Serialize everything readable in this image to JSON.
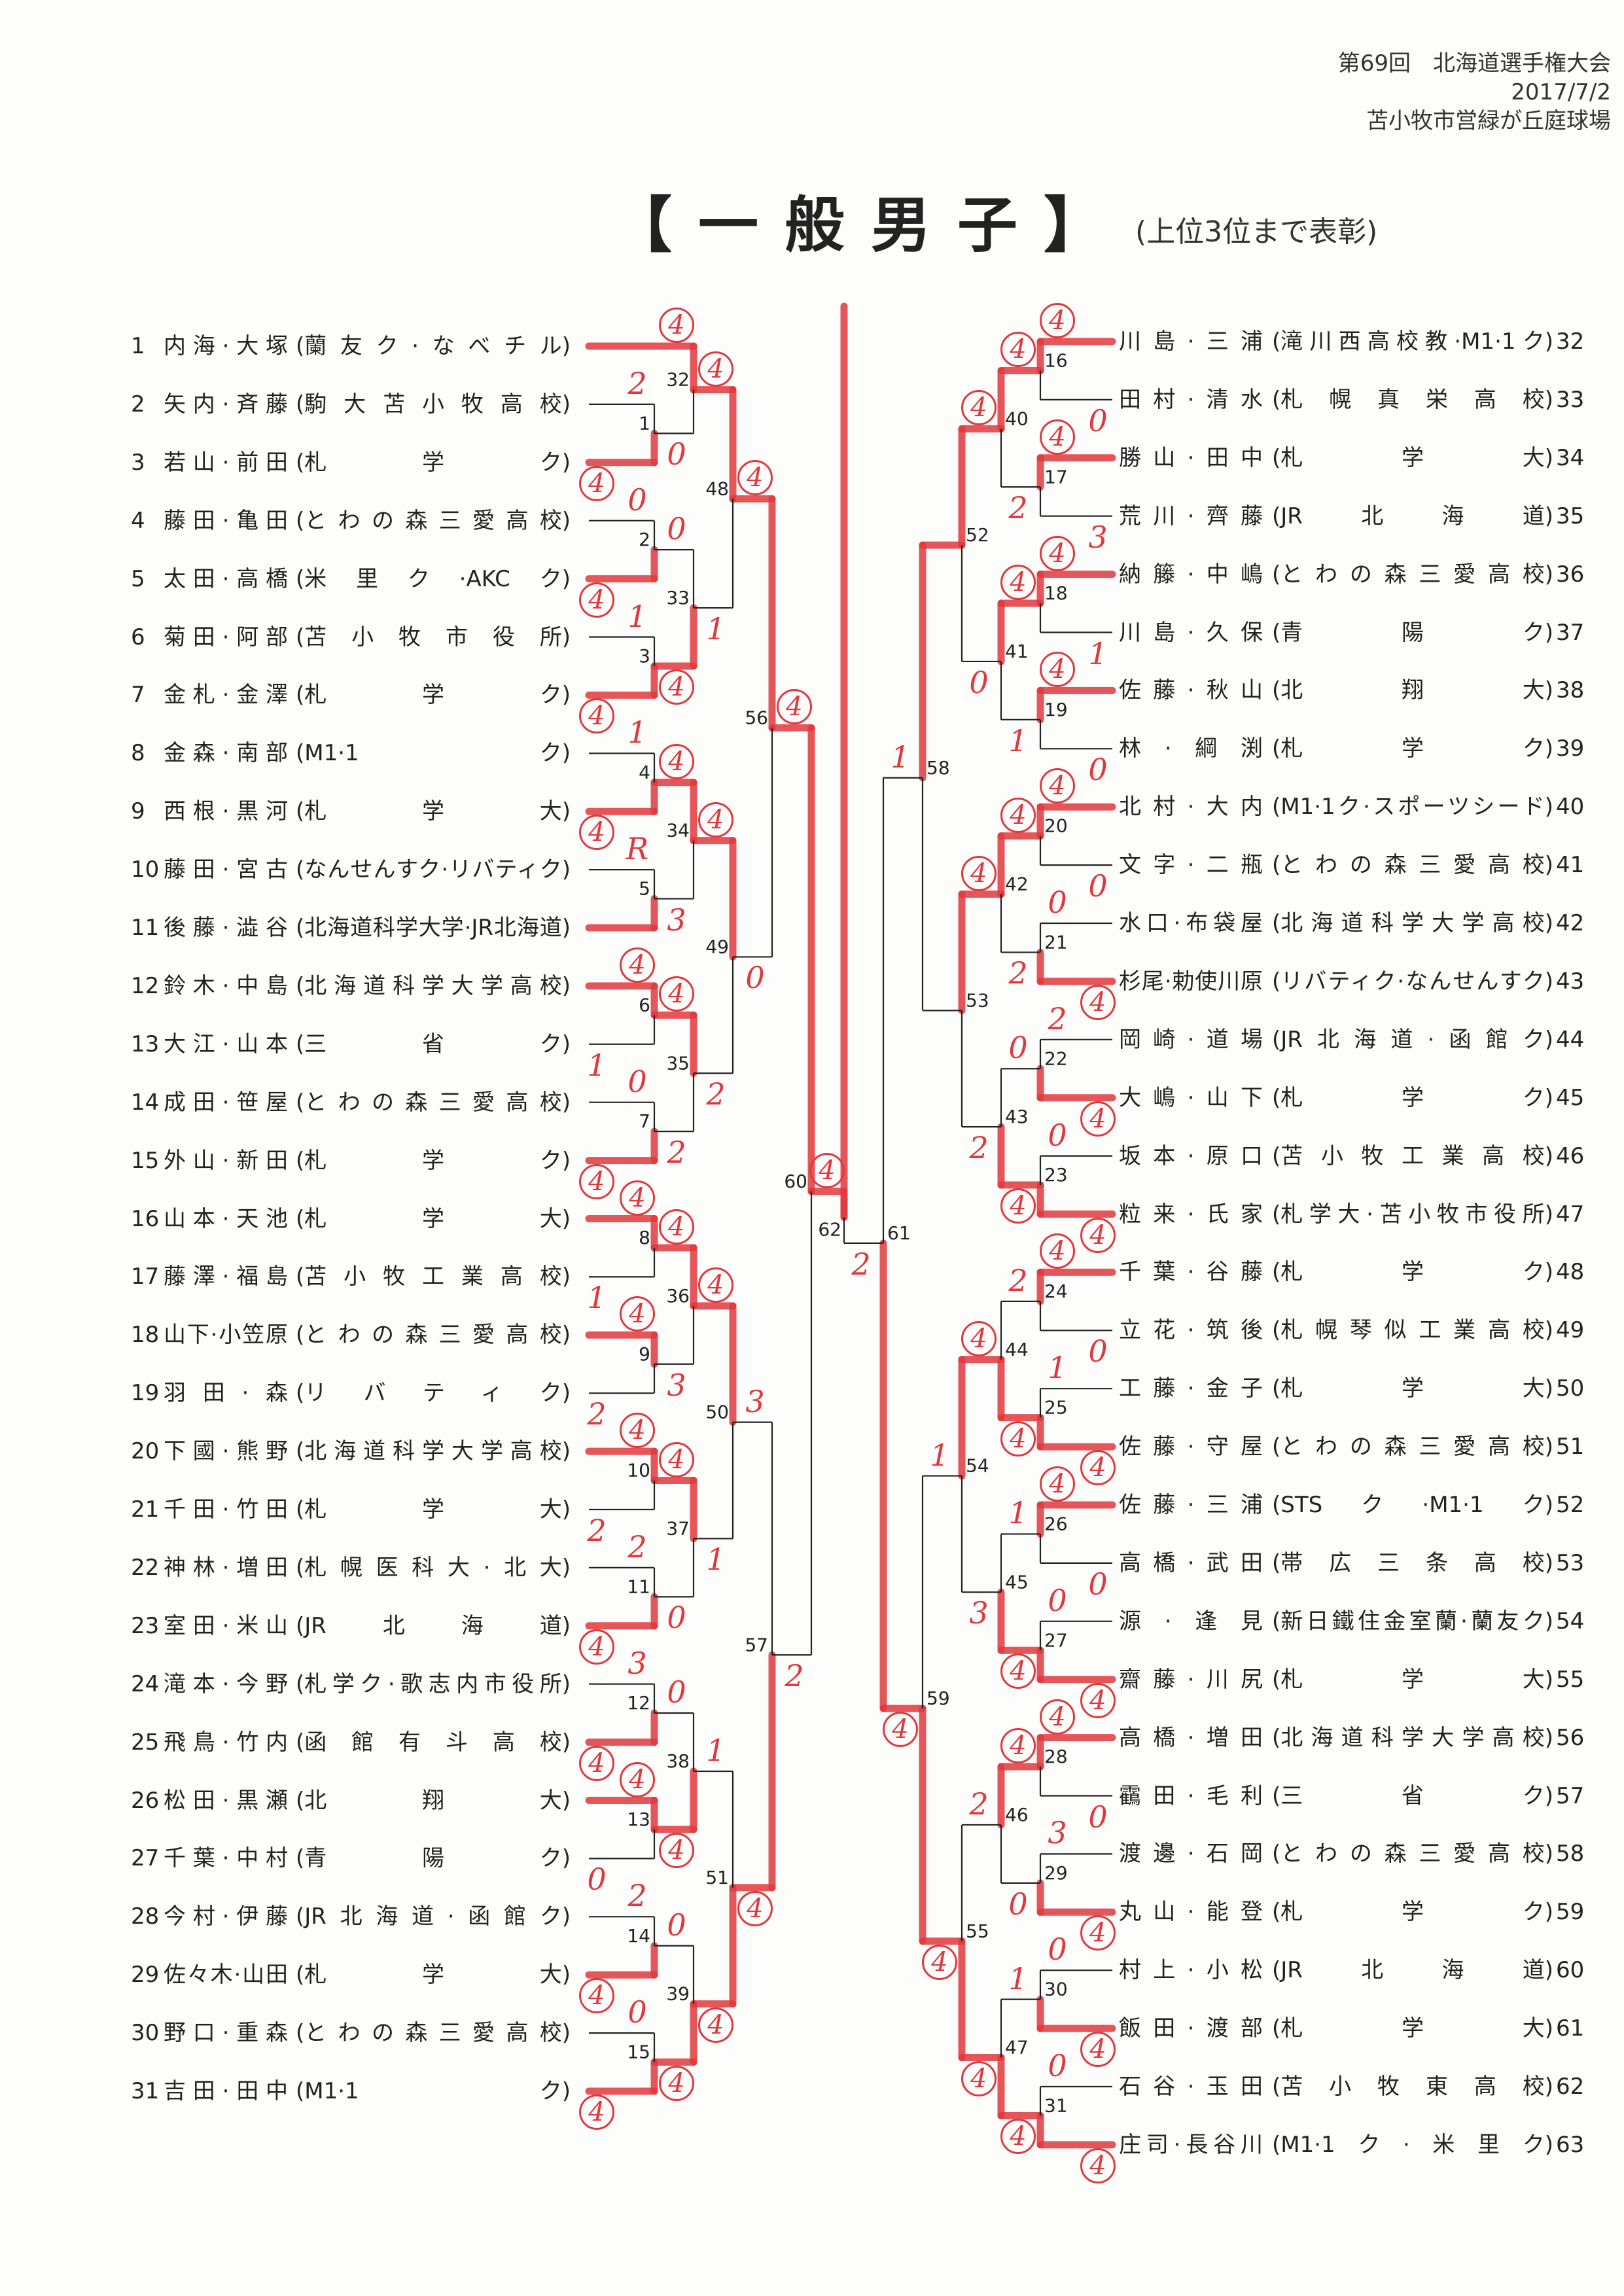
{
  "header": {
    "event": "第69回　北海道選手権大会",
    "date": "2017/7/2",
    "venue": "苫小牧市営緑が丘庭球場"
  },
  "title": "【一般男子】",
  "subtitle": "(上位3位まで表彰)",
  "colors": {
    "marker": "#e0383d",
    "line": "#222222"
  },
  "players": [
    {
      "no": "1",
      "name": "内海·大塚",
      "team": "蘭友ク·なべチル",
      "score": "4"
    },
    {
      "no": "2",
      "name": "矢内·斉藤",
      "team": "駒大苫小牧高校",
      "score": "2"
    },
    {
      "no": "3",
      "name": "若山·前田",
      "team": "札学ク",
      "score": "4"
    },
    {
      "no": "4",
      "name": "藤田·亀田",
      "team": "とわの森三愛高校",
      "score": "0"
    },
    {
      "no": "5",
      "name": "太田·高橋",
      "team": "米里ク·AKCク",
      "score": "4"
    },
    {
      "no": "6",
      "name": "菊田·阿部",
      "team": "苫小牧市役所",
      "score": "1"
    },
    {
      "no": "7",
      "name": "金札·金澤",
      "team": "札学ク",
      "score": "4"
    },
    {
      "no": "8",
      "name": "金森·南部",
      "team": "M1·1ク",
      "score": "1"
    },
    {
      "no": "9",
      "name": "西根·黒河",
      "team": "札学大",
      "score": "4"
    },
    {
      "no": "10",
      "name": "藤田·宮古",
      "team": "なんせんすク·リバティク",
      "score": "R"
    },
    {
      "no": "11",
      "name": "後藤·澁谷",
      "team": "北海道科学大学·JR北海道",
      "score": ""
    },
    {
      "no": "12",
      "name": "鈴木·中島",
      "team": "北海道科学大学高校",
      "score": "4"
    },
    {
      "no": "13",
      "name": "大江·山本",
      "team": "三省ク",
      "score": "1"
    },
    {
      "no": "14",
      "name": "成田·笹屋",
      "team": "とわの森三愛高校",
      "score": "0"
    },
    {
      "no": "15",
      "name": "外山·新田",
      "team": "札学ク",
      "score": "4"
    },
    {
      "no": "16",
      "name": "山本·天池",
      "team": "札学大",
      "score": "4"
    },
    {
      "no": "17",
      "name": "藤澤·福島",
      "team": "苫小牧工業高校",
      "score": "1"
    },
    {
      "no": "18",
      "name": "山下·小笠原",
      "team": "とわの森三愛高校",
      "score": "4"
    },
    {
      "no": "19",
      "name": "羽田·森",
      "team": "リバティク",
      "score": "2"
    },
    {
      "no": "20",
      "name": "下國·熊野",
      "team": "北海道科学大学高校",
      "score": "4"
    },
    {
      "no": "21",
      "name": "千田·竹田",
      "team": "札学大",
      "score": "2"
    },
    {
      "no": "22",
      "name": "神林·増田",
      "team": "札幌医科大·北大",
      "score": "2"
    },
    {
      "no": "23",
      "name": "室田·米山",
      "team": "JR北海道",
      "score": "4"
    },
    {
      "no": "24",
      "name": "滝本·今野",
      "team": "札学ク·歌志内市役所",
      "score": "3"
    },
    {
      "no": "25",
      "name": "飛鳥·竹内",
      "team": "函館有斗高校",
      "score": "4"
    },
    {
      "no": "26",
      "name": "松田·黒瀬",
      "team": "北翔大",
      "score": "4"
    },
    {
      "no": "27",
      "name": "千葉·中村",
      "team": "青陽ク",
      "score": "0"
    },
    {
      "no": "28",
      "name": "今村·伊藤",
      "team": "JR北海道·函館ク",
      "score": "2"
    },
    {
      "no": "29",
      "name": "佐々木·山田",
      "team": "札学大",
      "score": "4"
    },
    {
      "no": "30",
      "name": "野口·重森",
      "team": "とわの森三愛高校",
      "score": "0"
    },
    {
      "no": "31",
      "name": "吉田·田中",
      "team": "M1·1ク",
      "score": "4"
    },
    {
      "no": "32",
      "name": "川島·三浦",
      "team": "滝川西高校教·M1·1ク",
      "score": "4"
    },
    {
      "no": "33",
      "name": "田村·清水",
      "team": "札幌真栄高校",
      "score": "0"
    },
    {
      "no": "34",
      "name": "勝山·田中",
      "team": "札学大",
      "score": "4"
    },
    {
      "no": "35",
      "name": "荒川·齊藤",
      "team": "JR北海道",
      "score": "3"
    },
    {
      "no": "36",
      "name": "納籐·中嶋",
      "team": "とわの森三愛高校",
      "score": "4"
    },
    {
      "no": "37",
      "name": "川島·久保",
      "team": "青陽ク",
      "score": "1"
    },
    {
      "no": "38",
      "name": "佐藤·秋山",
      "team": "北翔大",
      "score": "4"
    },
    {
      "no": "39",
      "name": "林·綱渕",
      "team": "札学ク",
      "score": "0"
    },
    {
      "no": "40",
      "name": "北村·大内",
      "team": "M1·1ク·スポーツシード",
      "score": "4"
    },
    {
      "no": "41",
      "name": "文字·二瓶",
      "team": "とわの森三愛高校",
      "score": "0"
    },
    {
      "no": "42",
      "name": "水口·布袋屋",
      "team": "北海道科学大学高校",
      "score": "0"
    },
    {
      "no": "43",
      "name": "杉尾·勅使川原",
      "team": "リバティク·なんせんすク",
      "score": "4"
    },
    {
      "no": "44",
      "name": "岡崎·道場",
      "team": "JR北海道·函館ク",
      "score": "2"
    },
    {
      "no": "45",
      "name": "大嶋·山下",
      "team": "札学ク",
      "score": "4"
    },
    {
      "no": "46",
      "name": "坂本·原口",
      "team": "苫小牧工業高校",
      "score": "0"
    },
    {
      "no": "47",
      "name": "粒来·氏家",
      "team": "札学大·苫小牧市役所",
      "score": "4"
    },
    {
      "no": "48",
      "name": "千葉·谷藤",
      "team": "札学ク",
      "score": "4"
    },
    {
      "no": "49",
      "name": "立花·筑後",
      "team": "札幌琴似工業高校",
      "score": "0"
    },
    {
      "no": "50",
      "name": "工藤·金子",
      "team": "札学大",
      "score": "1"
    },
    {
      "no": "51",
      "name": "佐藤·守屋",
      "team": "とわの森三愛高校",
      "score": "4"
    },
    {
      "no": "52",
      "name": "佐藤·三浦",
      "team": "STSク·M1·1ク",
      "score": "4"
    },
    {
      "no": "53",
      "name": "高橋·武田",
      "team": "帯広三条高校",
      "score": "0"
    },
    {
      "no": "54",
      "name": "源·逢見",
      "team": "新日鐵住金室蘭·蘭友ク",
      "score": "0"
    },
    {
      "no": "55",
      "name": "齋藤·川尻",
      "team": "札学大",
      "score": "4"
    },
    {
      "no": "56",
      "name": "高橋·増田",
      "team": "北海道科学大学高校",
      "score": "4"
    },
    {
      "no": "57",
      "name": "靍田·毛利",
      "team": "三省ク",
      "score": "0"
    },
    {
      "no": "58",
      "name": "渡邊·石岡",
      "team": "とわの森三愛高校",
      "score": "3"
    },
    {
      "no": "59",
      "name": "丸山·能登",
      "team": "札学ク",
      "score": "4"
    },
    {
      "no": "60",
      "name": "村上·小松",
      "team": "JR北海道",
      "score": "0"
    },
    {
      "no": "61",
      "name": "飯田·渡部",
      "team": "札学大",
      "score": "4"
    },
    {
      "no": "62",
      "name": "石谷·玉田",
      "team": "苫小牧東高校",
      "score": "0"
    },
    {
      "no": "63",
      "name": "庄司·長谷川",
      "team": "M1·1ク·米里ク",
      "score": "4"
    }
  ],
  "matches": [
    {
      "id": "1",
      "winner": "bottom",
      "score": "0"
    },
    {
      "id": "2",
      "winner": "bottom",
      "score": "0"
    },
    {
      "id": "3",
      "winner": "bottom",
      "score": "4"
    },
    {
      "id": "4",
      "winner": "bottom",
      "score": "4"
    },
    {
      "id": "5",
      "winner": "bottom",
      "score": "3"
    },
    {
      "id": "6",
      "winner": "top",
      "score": "4"
    },
    {
      "id": "7",
      "winner": "bottom",
      "score": "2"
    },
    {
      "id": "8",
      "winner": "top",
      "score": "4"
    },
    {
      "id": "9",
      "winner": "top",
      "score": "3"
    },
    {
      "id": "10",
      "winner": "top",
      "score": "4"
    },
    {
      "id": "11",
      "winner": "bottom",
      "score": "0"
    },
    {
      "id": "12",
      "winner": "bottom",
      "score": "0"
    },
    {
      "id": "13",
      "winner": "top",
      "score": "4"
    },
    {
      "id": "14",
      "winner": "bottom",
      "score": "0"
    },
    {
      "id": "15",
      "winner": "bottom",
      "score": "4"
    },
    {
      "id": "16",
      "winner": "top",
      "score": "4"
    },
    {
      "id": "17",
      "winner": "top",
      "score": "2"
    },
    {
      "id": "18",
      "winner": "top",
      "score": "4"
    },
    {
      "id": "19",
      "winner": "top",
      "score": "1"
    },
    {
      "id": "20",
      "winner": "top",
      "score": "4"
    },
    {
      "id": "21",
      "winner": "bottom",
      "score": "2"
    },
    {
      "id": "22",
      "winner": "bottom",
      "score": "0"
    },
    {
      "id": "23",
      "winner": "bottom",
      "score": "4"
    },
    {
      "id": "24",
      "winner": "top",
      "score": "2"
    },
    {
      "id": "25",
      "winner": "bottom",
      "score": "4"
    },
    {
      "id": "26",
      "winner": "top",
      "score": "1"
    },
    {
      "id": "27",
      "winner": "bottom",
      "score": "4"
    },
    {
      "id": "28",
      "winner": "top",
      "score": "4"
    },
    {
      "id": "29",
      "winner": "bottom",
      "score": "0"
    },
    {
      "id": "30",
      "winner": "bottom",
      "score": "1"
    },
    {
      "id": "31",
      "winner": "bottom",
      "score": "4"
    },
    {
      "id": "32",
      "winner": "top",
      "score": "4"
    },
    {
      "id": "33",
      "winner": "bottom",
      "score": "1"
    },
    {
      "id": "34",
      "winner": "top",
      "score": "4"
    },
    {
      "id": "35",
      "winner": "top",
      "score": "2"
    },
    {
      "id": "36",
      "winner": "top",
      "score": "4"
    },
    {
      "id": "37",
      "winner": "top",
      "score": "1"
    },
    {
      "id": "38",
      "winner": "bottom",
      "score": "1"
    },
    {
      "id": "39",
      "winner": "bottom",
      "score": "4"
    },
    {
      "id": "40",
      "winner": "top",
      "score": "4"
    },
    {
      "id": "41",
      "winner": "top",
      "score": "0"
    },
    {
      "id": "42",
      "winner": "top",
      "score": "4"
    },
    {
      "id": "43",
      "winner": "bottom",
      "score": "2"
    },
    {
      "id": "44",
      "winner": "bottom",
      "score": "4"
    },
    {
      "id": "45",
      "winner": "bottom",
      "score": "3"
    },
    {
      "id": "46",
      "winner": "top",
      "score": "2"
    },
    {
      "id": "47",
      "winner": "bottom",
      "score": "4"
    },
    {
      "id": "48",
      "winner": "top",
      "score": "4"
    },
    {
      "id": "49",
      "winner": "top",
      "score": "0"
    },
    {
      "id": "50",
      "winner": "top",
      "score": "3"
    },
    {
      "id": "51",
      "winner": "bottom",
      "score": "4"
    },
    {
      "id": "52",
      "winner": "top",
      "score": ""
    },
    {
      "id": "53",
      "winner": "top",
      "score": ""
    },
    {
      "id": "54",
      "winner": "top",
      "score": "1"
    },
    {
      "id": "55",
      "winner": "bottom",
      "score": "4"
    },
    {
      "id": "56",
      "winner": "top",
      "score": "4"
    },
    {
      "id": "57",
      "winner": "bottom",
      "score": "2"
    },
    {
      "id": "58",
      "winner": "top",
      "score": "1"
    },
    {
      "id": "59",
      "winner": "bottom",
      "score": "4"
    },
    {
      "id": "60",
      "winner": "top",
      "score": "4"
    },
    {
      "id": "61",
      "winner": "bottom",
      "score": "2"
    },
    {
      "id": "62",
      "winner": "top",
      "score": ""
    }
  ]
}
